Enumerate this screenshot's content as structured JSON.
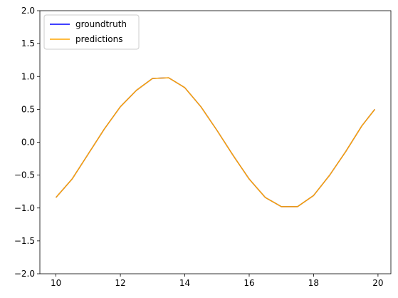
{
  "chart_data": {
    "type": "line",
    "title": "",
    "xlabel": "",
    "ylabel": "",
    "xlim": [
      9.5,
      20.4
    ],
    "ylim": [
      -2.0,
      2.0
    ],
    "x_ticks": [
      10,
      12,
      14,
      16,
      18,
      20
    ],
    "x_tick_labels": [
      "10",
      "12",
      "14",
      "16",
      "18",
      "20"
    ],
    "y_ticks": [
      -2.0,
      -1.5,
      -1.0,
      -0.5,
      0.0,
      0.5,
      1.0,
      1.5,
      2.0
    ],
    "y_tick_labels": [
      "−2.0",
      "−1.5",
      "−1.0",
      "−0.5",
      "0.0",
      "0.5",
      "1.0",
      "1.5",
      "2.0"
    ],
    "grid": false,
    "legend_position": "top-left",
    "x": [
      10.0,
      10.5,
      11.0,
      11.5,
      12.0,
      12.5,
      13.0,
      13.5,
      14.0,
      14.5,
      15.0,
      15.5,
      16.0,
      16.5,
      17.0,
      17.5,
      18.0,
      18.5,
      19.0,
      19.5,
      19.9
    ],
    "series": [
      {
        "name": "groundtruth",
        "color": "#0000ff",
        "values": [
          -0.84,
          -0.56,
          -0.18,
          0.2,
          0.54,
          0.79,
          0.97,
          0.98,
          0.83,
          0.54,
          0.18,
          -0.2,
          -0.56,
          -0.84,
          -0.98,
          -0.98,
          -0.81,
          -0.5,
          -0.14,
          0.25,
          0.5
        ]
      },
      {
        "name": "predictions",
        "color": "#ffa500",
        "values": [
          -0.84,
          -0.56,
          -0.18,
          0.2,
          0.54,
          0.79,
          0.97,
          0.98,
          0.83,
          0.54,
          0.18,
          -0.2,
          -0.56,
          -0.84,
          -0.98,
          -0.98,
          -0.81,
          -0.5,
          -0.14,
          0.25,
          0.5
        ]
      }
    ]
  }
}
